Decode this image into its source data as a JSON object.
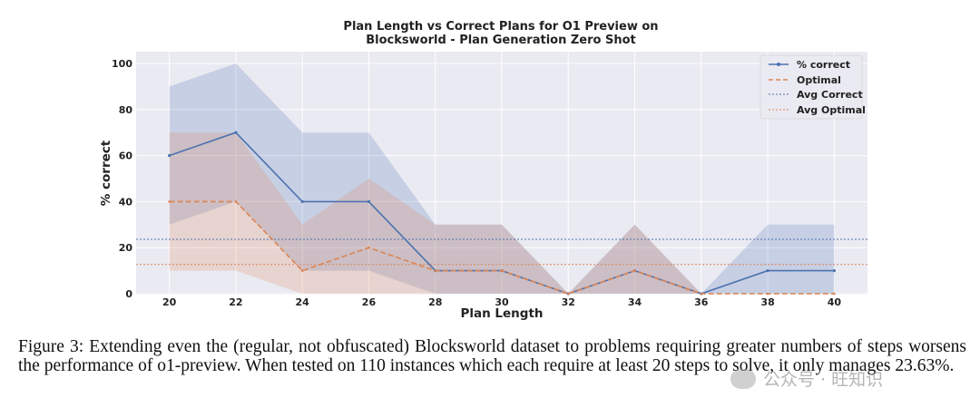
{
  "chart_data": {
    "type": "line",
    "title_lines": [
      "Plan Length vs Correct Plans for O1 Preview on",
      "Blocksworld - Plan Generation Zero Shot"
    ],
    "xlabel": "Plan Length",
    "ylabel": "% correct",
    "x": [
      20,
      22,
      24,
      26,
      28,
      30,
      32,
      34,
      36,
      38,
      40
    ],
    "xlim": [
      19,
      41
    ],
    "ylim": [
      0,
      100
    ],
    "yticks": [
      0,
      20,
      40,
      60,
      80,
      100
    ],
    "grid": true,
    "series": [
      {
        "name": "% correct",
        "style": "solid-with-markers",
        "color": "#4c72b0",
        "values": [
          60,
          70,
          40,
          40,
          10,
          10,
          0,
          10,
          0,
          10,
          10
        ],
        "band_upper": [
          90,
          100,
          70,
          70,
          30,
          30,
          0,
          30,
          0,
          30,
          30
        ],
        "band_lower": [
          30,
          40,
          10,
          10,
          0,
          0,
          0,
          0,
          0,
          0,
          0
        ]
      },
      {
        "name": "Optimal",
        "style": "dashed",
        "color": "#dd8452",
        "values": [
          40,
          40,
          10,
          20,
          10,
          10,
          0,
          10,
          0,
          0,
          0
        ],
        "band_upper": [
          70,
          70,
          30,
          50,
          30,
          30,
          0,
          30,
          0,
          0,
          0
        ],
        "band_lower": [
          10,
          10,
          0,
          0,
          0,
          0,
          0,
          0,
          0,
          0,
          0
        ]
      }
    ],
    "reference_lines": [
      {
        "name": "Avg Correct",
        "value": 23.63,
        "style": "dotted",
        "color": "#4c72b0"
      },
      {
        "name": "Avg Optimal",
        "value": 12.7,
        "style": "dotted",
        "color": "#dd8452"
      }
    ],
    "legend_position": "top-right"
  },
  "caption": "Figure 3: Extending even the (regular, not obfuscated) Blocksworld dataset to problems requiring greater numbers of steps worsens the performance of o1-preview. When tested on 110 instances which each require at least 20 steps to solve, it only manages 23.63%.",
  "watermark": "公众号 · 旺知识"
}
